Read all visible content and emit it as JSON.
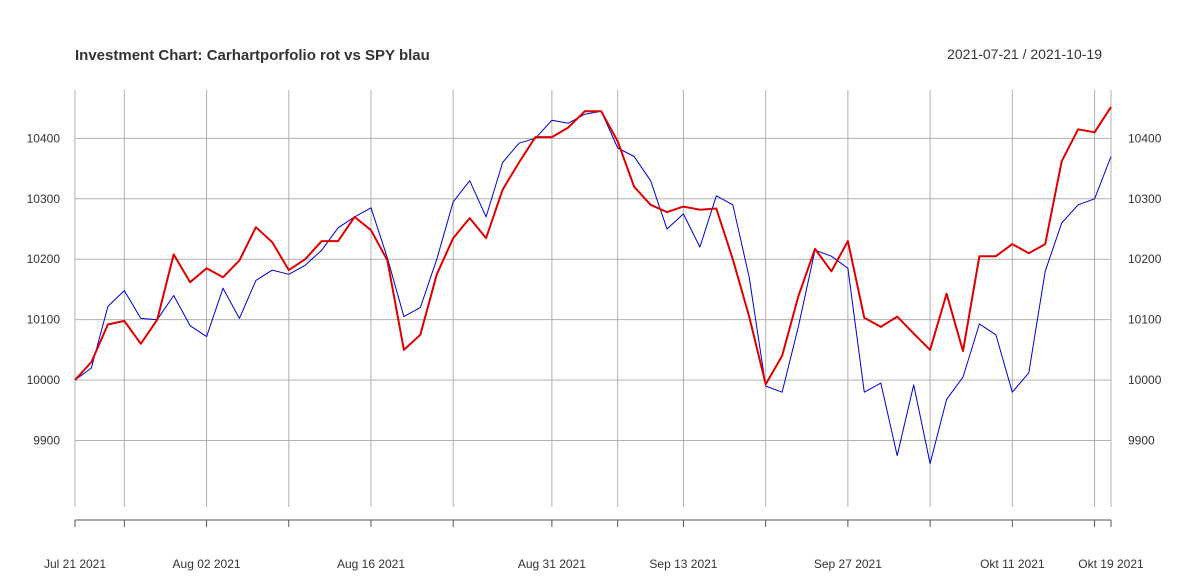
{
  "chart_data": {
    "type": "line",
    "title": "Investment Chart: Carhartporfolio rot vs SPY blau",
    "date_range": "2021-07-21 / 2021-10-19",
    "ylim": [
      9790,
      10480
    ],
    "y_ticks": [
      9900,
      10000,
      10100,
      10200,
      10300,
      10400
    ],
    "grid": true,
    "x_tick_labels": [
      {
        "date": "2021-07-21",
        "label": "Jul 21 2021"
      },
      {
        "date": "2021-08-02",
        "label": "Aug 02 2021"
      },
      {
        "date": "2021-08-16",
        "label": "Aug 16 2021"
      },
      {
        "date": "2021-08-31",
        "label": "Aug 31 2021"
      },
      {
        "date": "2021-09-13",
        "label": "Sep 13 2021"
      },
      {
        "date": "2021-09-27",
        "label": "Sep 27 2021"
      },
      {
        "date": "2021-10-11",
        "label": "Okt 11 2021"
      },
      {
        "date": "2021-10-19",
        "label": "Okt 19 2021"
      }
    ],
    "x_minor_ticks": [
      "2021-07-21",
      "2021-07-26",
      "2021-08-02",
      "2021-08-09",
      "2021-08-16",
      "2021-08-23",
      "2021-08-31",
      "2021-09-07",
      "2021-09-13",
      "2021-09-20",
      "2021-09-27",
      "2021-10-04",
      "2021-10-11",
      "2021-10-18",
      "2021-10-19"
    ],
    "x_gridlines": [
      "2021-07-21",
      "2021-07-26",
      "2021-08-02",
      "2021-08-09",
      "2021-08-16",
      "2021-08-23",
      "2021-08-31",
      "2021-09-07",
      "2021-09-13",
      "2021-09-20",
      "2021-09-27",
      "2021-10-04",
      "2021-10-11",
      "2021-10-18",
      "2021-10-19"
    ],
    "x": [
      "2021-07-21",
      "2021-07-22",
      "2021-07-23",
      "2021-07-26",
      "2021-07-27",
      "2021-07-28",
      "2021-07-29",
      "2021-07-30",
      "2021-08-02",
      "2021-08-03",
      "2021-08-04",
      "2021-08-05",
      "2021-08-06",
      "2021-08-09",
      "2021-08-10",
      "2021-08-11",
      "2021-08-12",
      "2021-08-13",
      "2021-08-16",
      "2021-08-17",
      "2021-08-18",
      "2021-08-19",
      "2021-08-20",
      "2021-08-23",
      "2021-08-24",
      "2021-08-25",
      "2021-08-26",
      "2021-08-27",
      "2021-08-30",
      "2021-08-31",
      "2021-09-01",
      "2021-09-02",
      "2021-09-03",
      "2021-09-07",
      "2021-09-08",
      "2021-09-09",
      "2021-09-10",
      "2021-09-13",
      "2021-09-14",
      "2021-09-15",
      "2021-09-16",
      "2021-09-17",
      "2021-09-20",
      "2021-09-21",
      "2021-09-22",
      "2021-09-23",
      "2021-09-24",
      "2021-09-27",
      "2021-09-28",
      "2021-09-29",
      "2021-09-30",
      "2021-10-01",
      "2021-10-04",
      "2021-10-05",
      "2021-10-06",
      "2021-10-07",
      "2021-10-08",
      "2021-10-11",
      "2021-10-12",
      "2021-10-13",
      "2021-10-14",
      "2021-10-15",
      "2021-10-18",
      "2021-10-19"
    ],
    "series": [
      {
        "color": "#0000cc",
        "stroke_width": 1,
        "values": [
          10000,
          10020,
          10122,
          10148,
          10102,
          10100,
          10140,
          10090,
          10072,
          10152,
          10102,
          10165,
          10182,
          10175,
          10190,
          10215,
          10252,
          10270,
          10285,
          10202,
          10105,
          10120,
          10200,
          10295,
          10330,
          10270,
          10360,
          10392,
          10400,
          10430,
          10425,
          10440,
          10445,
          10384,
          10370,
          10330,
          10250,
          10275,
          10220,
          10305,
          10290,
          10170,
          9990,
          9980,
          10090,
          10215,
          10205,
          10185,
          9980,
          9995,
          9875,
          9992,
          9862,
          9968,
          10005,
          10093,
          10075,
          9980,
          10012,
          10180,
          10260,
          10290,
          10300,
          10370
        ]
      },
      {
        "color": "#dd0000",
        "stroke_width": 2,
        "values": [
          10000,
          10030,
          10092,
          10098,
          10060,
          10100,
          10208,
          10162,
          10185,
          10170,
          10198,
          10253,
          10228,
          10182,
          10200,
          10230,
          10230,
          10270,
          10248,
          10198,
          10050,
          10075,
          10175,
          10235,
          10268,
          10235,
          10315,
          10360,
          10402,
          10402,
          10418,
          10445,
          10445,
          10395,
          10320,
          10290,
          10278,
          10287,
          10282,
          10284,
          10200,
          10105,
          9993,
          10040,
          10140,
          10217,
          10180,
          10230,
          10103,
          10088,
          10105,
          10077,
          10050,
          10143,
          10048,
          10205,
          10205,
          10225,
          10210,
          10225,
          10362,
          10415,
          10410,
          10452
        ]
      }
    ]
  }
}
